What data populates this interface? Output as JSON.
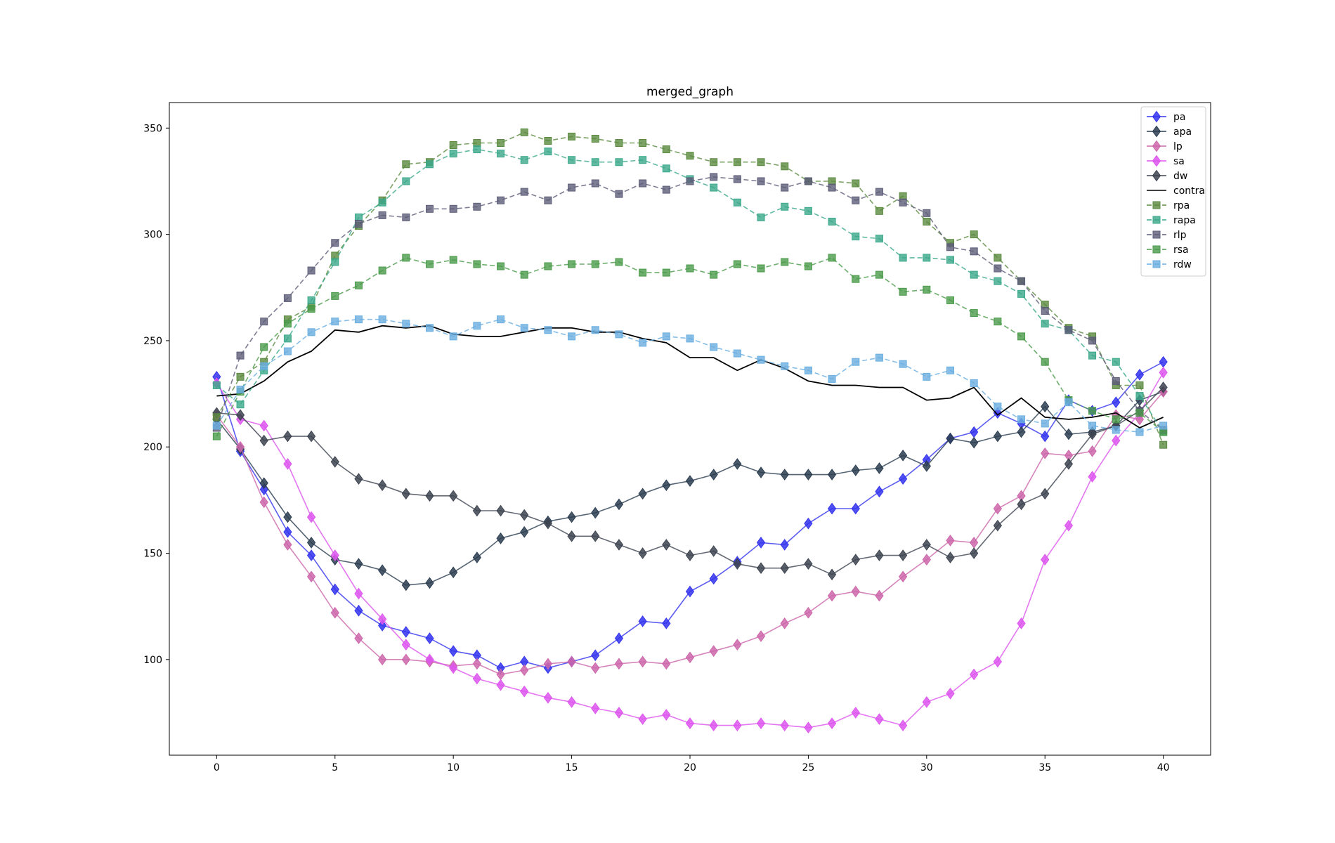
{
  "chart_data": {
    "type": "line",
    "title": "merged_graph",
    "xlabel": "",
    "ylabel": "",
    "xlim": [
      -2,
      42
    ],
    "ylim": [
      55,
      362
    ],
    "xticks": [
      0,
      5,
      10,
      15,
      20,
      25,
      30,
      35,
      40
    ],
    "yticks": [
      100,
      150,
      200,
      250,
      300,
      350
    ],
    "grid": false,
    "legend_position": "upper right",
    "x": [
      0,
      1,
      2,
      3,
      4,
      5,
      6,
      7,
      8,
      9,
      10,
      11,
      12,
      13,
      14,
      15,
      16,
      17,
      18,
      19,
      20,
      21,
      22,
      23,
      24,
      25,
      26,
      27,
      28,
      29,
      30,
      31,
      32,
      33,
      34,
      35,
      36,
      37,
      38,
      39,
      40
    ],
    "series": [
      {
        "name": "pa",
        "color": "#3333ee",
        "marker": "diamond",
        "dash": false,
        "values": [
          233,
          198,
          180,
          160,
          149,
          133,
          123,
          116,
          113,
          110,
          104,
          102,
          96,
          99,
          96,
          99,
          102,
          110,
          118,
          117,
          132,
          138,
          146,
          155,
          154,
          164,
          171,
          171,
          179,
          185,
          194,
          204,
          207,
          216,
          211,
          205,
          222,
          217,
          221,
          234,
          240
        ]
      },
      {
        "name": "apa",
        "color": "#2b3d50",
        "marker": "diamond",
        "dash": false,
        "values": [
          213,
          199,
          183,
          167,
          155,
          147,
          145,
          142,
          135,
          136,
          141,
          148,
          157,
          160,
          165,
          167,
          169,
          173,
          178,
          182,
          184,
          187,
          192,
          188,
          187,
          187,
          187,
          189,
          190,
          196,
          191,
          204,
          202,
          205,
          207,
          219,
          206,
          207,
          210,
          222,
          226
        ]
      },
      {
        "name": "lp",
        "color": "#cc66aa",
        "marker": "diamond",
        "dash": false,
        "values": [
          215,
          200,
          174,
          154,
          139,
          122,
          110,
          100,
          100,
          99,
          97,
          98,
          93,
          95,
          98,
          99,
          96,
          98,
          99,
          98,
          101,
          104,
          107,
          111,
          117,
          122,
          130,
          132,
          130,
          139,
          147,
          156,
          155,
          171,
          177,
          197,
          196,
          198,
          215,
          213,
          226
        ]
      },
      {
        "name": "sa",
        "color": "#dd55ee",
        "marker": "diamond",
        "dash": false,
        "values": [
          230,
          213,
          210,
          192,
          167,
          149,
          131,
          119,
          107,
          100,
          96,
          91,
          88,
          85,
          82,
          80,
          77,
          75,
          72,
          74,
          70,
          69,
          69,
          70,
          69,
          68,
          70,
          75,
          72,
          69,
          80,
          84,
          93,
          99,
          117,
          147,
          163,
          186,
          203,
          216,
          235
        ]
      },
      {
        "name": "dw",
        "color": "#3d4450",
        "marker": "diamond",
        "dash": false,
        "values": [
          216,
          215,
          203,
          205,
          205,
          193,
          185,
          182,
          178,
          177,
          177,
          170,
          170,
          168,
          164,
          158,
          158,
          154,
          150,
          154,
          149,
          151,
          145,
          143,
          143,
          145,
          140,
          147,
          149,
          149,
          154,
          148,
          150,
          163,
          173,
          178,
          192,
          206,
          210,
          217,
          228
        ]
      },
      {
        "name": "contra",
        "color": "#000000",
        "marker": "none",
        "dash": false,
        "values": [
          224,
          225,
          231,
          240,
          245,
          255,
          254,
          257,
          256,
          257,
          253,
          252,
          252,
          254,
          256,
          256,
          254,
          254,
          251,
          249,
          242,
          242,
          236,
          241,
          237,
          231,
          229,
          229,
          228,
          228,
          222,
          223,
          228,
          215,
          223,
          214,
          213,
          214,
          216,
          209,
          214
        ]
      },
      {
        "name": "rpa",
        "color": "#5a8a3f",
        "marker": "square",
        "dash": true,
        "values": [
          214,
          233,
          240,
          260,
          266,
          290,
          304,
          316,
          333,
          334,
          342,
          343,
          343,
          348,
          344,
          346,
          345,
          343,
          343,
          340,
          337,
          334,
          334,
          334,
          332,
          325,
          325,
          324,
          311,
          318,
          306,
          296,
          300,
          289,
          278,
          267,
          256,
          252,
          229,
          229,
          201
        ]
      },
      {
        "name": "rapa",
        "color": "#3aa88a",
        "marker": "square",
        "dash": true,
        "values": [
          229,
          220,
          236,
          251,
          269,
          287,
          308,
          315,
          325,
          333,
          338,
          340,
          338,
          335,
          339,
          335,
          334,
          334,
          335,
          331,
          326,
          322,
          315,
          308,
          313,
          311,
          306,
          299,
          298,
          289,
          289,
          288,
          281,
          278,
          272,
          258,
          255,
          243,
          240,
          224,
          207
        ]
      },
      {
        "name": "rlp",
        "color": "#5c5c78",
        "marker": "square",
        "dash": true,
        "values": [
          209,
          243,
          259,
          270,
          283,
          296,
          305,
          309,
          308,
          312,
          312,
          313,
          316,
          320,
          316,
          322,
          324,
          319,
          324,
          321,
          325,
          327,
          326,
          325,
          322,
          325,
          322,
          316,
          320,
          315,
          310,
          294,
          292,
          284,
          278,
          264,
          255,
          250,
          231,
          217,
          208
        ]
      },
      {
        "name": "rsa",
        "color": "#4a9a4a",
        "marker": "square",
        "dash": true,
        "values": [
          205,
          226,
          247,
          258,
          265,
          271,
          276,
          283,
          289,
          286,
          288,
          286,
          285,
          281,
          285,
          286,
          286,
          287,
          282,
          282,
          284,
          281,
          286,
          284,
          287,
          285,
          289,
          279,
          281,
          273,
          274,
          269,
          263,
          259,
          252,
          240,
          222,
          217,
          213,
          216,
          207
        ]
      },
      {
        "name": "rdw",
        "color": "#6aaee0",
        "marker": "square",
        "dash": true,
        "values": [
          210,
          227,
          238,
          245,
          254,
          259,
          260,
          260,
          258,
          256,
          252,
          257,
          260,
          256,
          255,
          252,
          255,
          253,
          249,
          252,
          251,
          247,
          244,
          241,
          238,
          236,
          232,
          240,
          242,
          239,
          233,
          236,
          230,
          219,
          213,
          211,
          221,
          210,
          208,
          207,
          210
        ]
      }
    ]
  }
}
